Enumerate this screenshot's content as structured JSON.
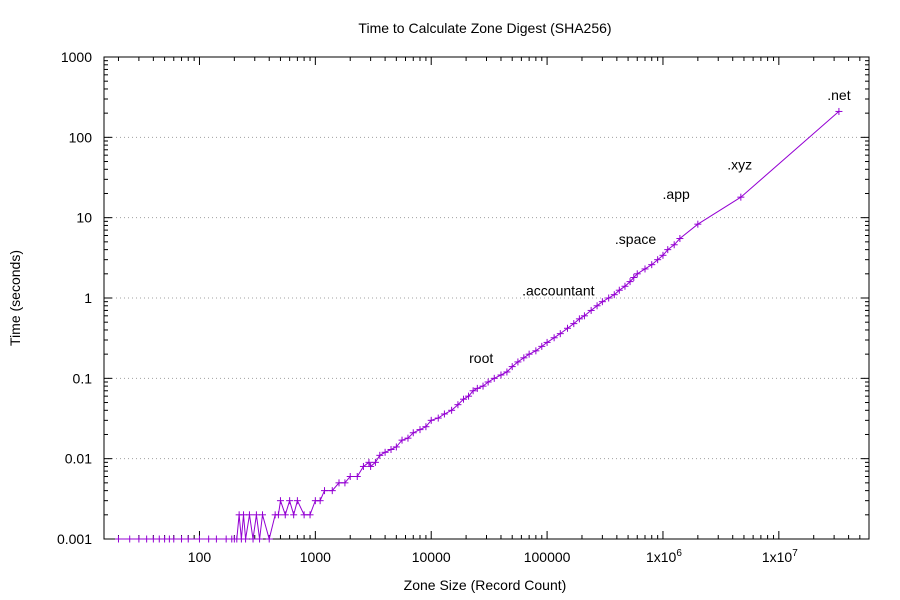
{
  "chart_data": {
    "type": "line",
    "title": "Time to Calculate Zone Digest (SHA256)",
    "xlabel": "Zone Size (Record Count)",
    "ylabel": "Time (seconds)",
    "x_scale": "log",
    "y_scale": "log",
    "xlim": [
      15,
      60000000
    ],
    "ylim": [
      0.001,
      1000
    ],
    "x_ticks": [
      {
        "value": 100,
        "label": "100"
      },
      {
        "value": 1000,
        "label": "1000"
      },
      {
        "value": 10000,
        "label": "10000"
      },
      {
        "value": 100000,
        "label": "100000"
      },
      {
        "value": 1000000,
        "label": "1x10",
        "exponent": "6"
      },
      {
        "value": 10000000,
        "label": "1x10",
        "exponent": "7"
      }
    ],
    "y_ticks": [
      {
        "value": 0.001,
        "label": "0.001"
      },
      {
        "value": 0.01,
        "label": "0.01"
      },
      {
        "value": 0.1,
        "label": "0.1"
      },
      {
        "value": 1,
        "label": "1"
      },
      {
        "value": 10,
        "label": "10"
      },
      {
        "value": 100,
        "label": "100"
      },
      {
        "value": 1000,
        "label": "1000"
      }
    ],
    "grid": "horizontal dotted",
    "legend": "none",
    "series_color": "#9400d3",
    "marker": "plus",
    "series": [
      {
        "x": [
          20,
          25,
          30,
          35,
          40,
          45,
          50,
          55,
          60,
          70,
          80,
          100,
          120,
          140,
          170,
          190,
          200,
          210,
          220,
          230,
          240,
          250,
          270,
          290,
          310,
          330,
          350,
          400,
          450,
          480,
          500,
          550,
          600,
          650,
          700,
          800,
          900,
          1000,
          1100,
          1200,
          1400,
          1600,
          1800,
          2000,
          2300,
          2600,
          2900,
          3000,
          3300,
          3600,
          4000,
          4500,
          5000,
          5600,
          6300,
          7000,
          8000,
          9000,
          10000,
          11500,
          13000,
          15000,
          17000,
          19000,
          21000,
          23000,
          25000,
          28000,
          31000,
          35000,
          40000,
          45000,
          50000,
          56000,
          63000,
          70000,
          80000,
          90000,
          100000,
          115000,
          130000,
          150000,
          170000,
          190000,
          210000,
          240000,
          270000,
          300000,
          340000,
          380000,
          420000,
          470000,
          520000,
          560000,
          600000,
          700000,
          800000,
          900000,
          1000000,
          1100000,
          1250000,
          1400000,
          2000000,
          4700000,
          33000000
        ],
        "y": [
          0.001,
          0.001,
          0.001,
          0.001,
          0.001,
          0.001,
          0.001,
          0.001,
          0.001,
          0.001,
          0.001,
          0.001,
          0.001,
          0.001,
          0.001,
          0.001,
          0.001,
          0.001,
          0.002,
          0.001,
          0.002,
          0.001,
          0.002,
          0.001,
          0.002,
          0.001,
          0.002,
          0.001,
          0.002,
          0.002,
          0.003,
          0.002,
          0.003,
          0.002,
          0.003,
          0.002,
          0.002,
          0.003,
          0.003,
          0.004,
          0.004,
          0.005,
          0.005,
          0.006,
          0.006,
          0.008,
          0.009,
          0.008,
          0.009,
          0.011,
          0.012,
          0.013,
          0.014,
          0.017,
          0.018,
          0.021,
          0.023,
          0.025,
          0.03,
          0.032,
          0.036,
          0.04,
          0.047,
          0.055,
          0.06,
          0.07,
          0.075,
          0.08,
          0.09,
          0.1,
          0.11,
          0.12,
          0.14,
          0.16,
          0.18,
          0.2,
          0.22,
          0.25,
          0.28,
          0.32,
          0.36,
          0.42,
          0.48,
          0.55,
          0.6,
          0.7,
          0.8,
          0.9,
          1.0,
          1.1,
          1.25,
          1.4,
          1.6,
          1.8,
          2.0,
          2.3,
          2.6,
          3.0,
          3.4,
          4.0,
          4.6,
          5.5,
          8.3,
          18,
          210
        ]
      }
    ],
    "annotations": [
      {
        "label": "root",
        "x": 27000,
        "y": 0.155
      },
      {
        "label": ".accountant",
        "x": 125000,
        "y": 1.08
      },
      {
        "label": ".space",
        "x": 580000,
        "y": 4.7
      },
      {
        "label": ".app",
        "x": 1300000,
        "y": 17
      },
      {
        "label": ".xyz",
        "x": 4600000,
        "y": 40
      },
      {
        "label": ".net",
        "x": 33000000,
        "y": 290
      }
    ]
  }
}
